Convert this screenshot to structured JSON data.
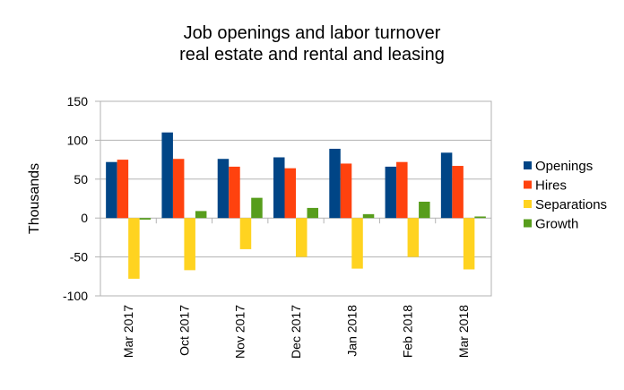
{
  "chart_data": {
    "type": "bar",
    "title": [
      "Job openings and labor turnover",
      "real estate and rental and leasing"
    ],
    "ylabel": "Thousands",
    "ylim": [
      -100,
      150
    ],
    "yticks": [
      -100,
      -50,
      0,
      50,
      100,
      150
    ],
    "grid": true,
    "legend_position": "right",
    "categories": [
      "Mar 2017",
      "Oct 2017",
      "Nov 2017",
      "Dec 2017",
      "Jan 2018",
      "Feb 2018",
      "Mar 2018"
    ],
    "series": [
      {
        "name": "Openings",
        "color": "#004586",
        "values": [
          72,
          110,
          76,
          78,
          89,
          66,
          84
        ]
      },
      {
        "name": "Hires",
        "color": "#ff420e",
        "values": [
          75,
          76,
          66,
          64,
          70,
          72,
          67
        ]
      },
      {
        "name": "Separations",
        "color": "#ffd320",
        "values": [
          -78,
          -67,
          -40,
          -50,
          -65,
          -50,
          -66
        ]
      },
      {
        "name": "Growth",
        "color": "#579d1c",
        "values": [
          -2,
          9,
          26,
          13,
          5,
          21,
          2
        ]
      }
    ]
  }
}
